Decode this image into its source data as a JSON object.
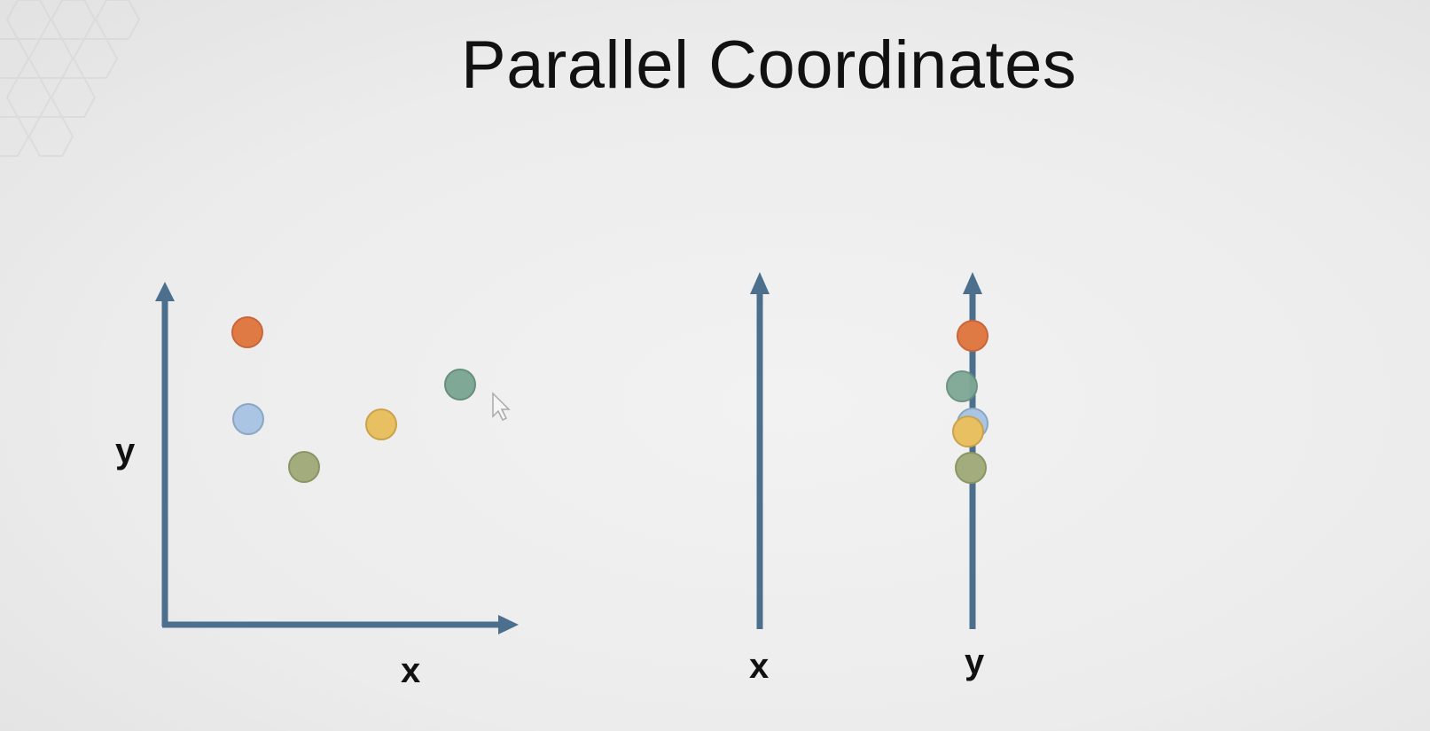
{
  "slide": {
    "title": "Parallel Coordinates"
  },
  "scatter_plot": {
    "x_label": "x",
    "y_label": "y"
  },
  "parallel_axes": {
    "axis_1_label": "x",
    "axis_2_label": "y"
  },
  "colors": {
    "axis": "#4d6f8e",
    "orange": "#e07a45",
    "blue": "#a9c5e3",
    "olive": "#a3ac7c",
    "yellow": "#e8c062",
    "teal": "#7fa896"
  }
}
